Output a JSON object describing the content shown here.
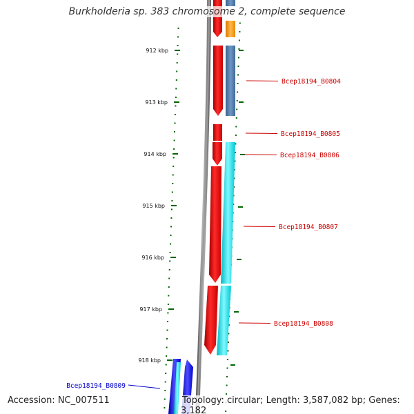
{
  "title": "Burkholderia sp. 383 chromosome 2, complete sequence",
  "accession": "Accession: NC_007511",
  "summary": "Topology: circular; Length: 3,587,082 bp; Genes: 3,182",
  "ruler": [
    "912 kbp",
    "913 kbp",
    "914 kbp",
    "915 kbp",
    "916 kbp",
    "917 kbp",
    "918 kbp"
  ],
  "gene_labels": [
    {
      "text": "Bcep18194_B0804",
      "color": "#cc0000"
    },
    {
      "text": "Bcep18194_B0805",
      "color": "#cc0000"
    },
    {
      "text": "Bcep18194_B0806",
      "color": "#cc0000"
    },
    {
      "text": "Bcep18194_B0807",
      "color": "#cc0000"
    },
    {
      "text": "Bcep18194_B0808",
      "color": "#cc0000"
    },
    {
      "text": "Bcep18194_B0809",
      "color": "#0000cc"
    }
  ],
  "colors": {
    "backbone": "#888888",
    "forward_cds": "#ff0000",
    "reverse_cds": "#00e5ee",
    "reverse_cds_alt": "#4a76a8",
    "orange_feature": "#ff9900",
    "blue_feature": "#0000ee",
    "ticks": "#006600"
  }
}
